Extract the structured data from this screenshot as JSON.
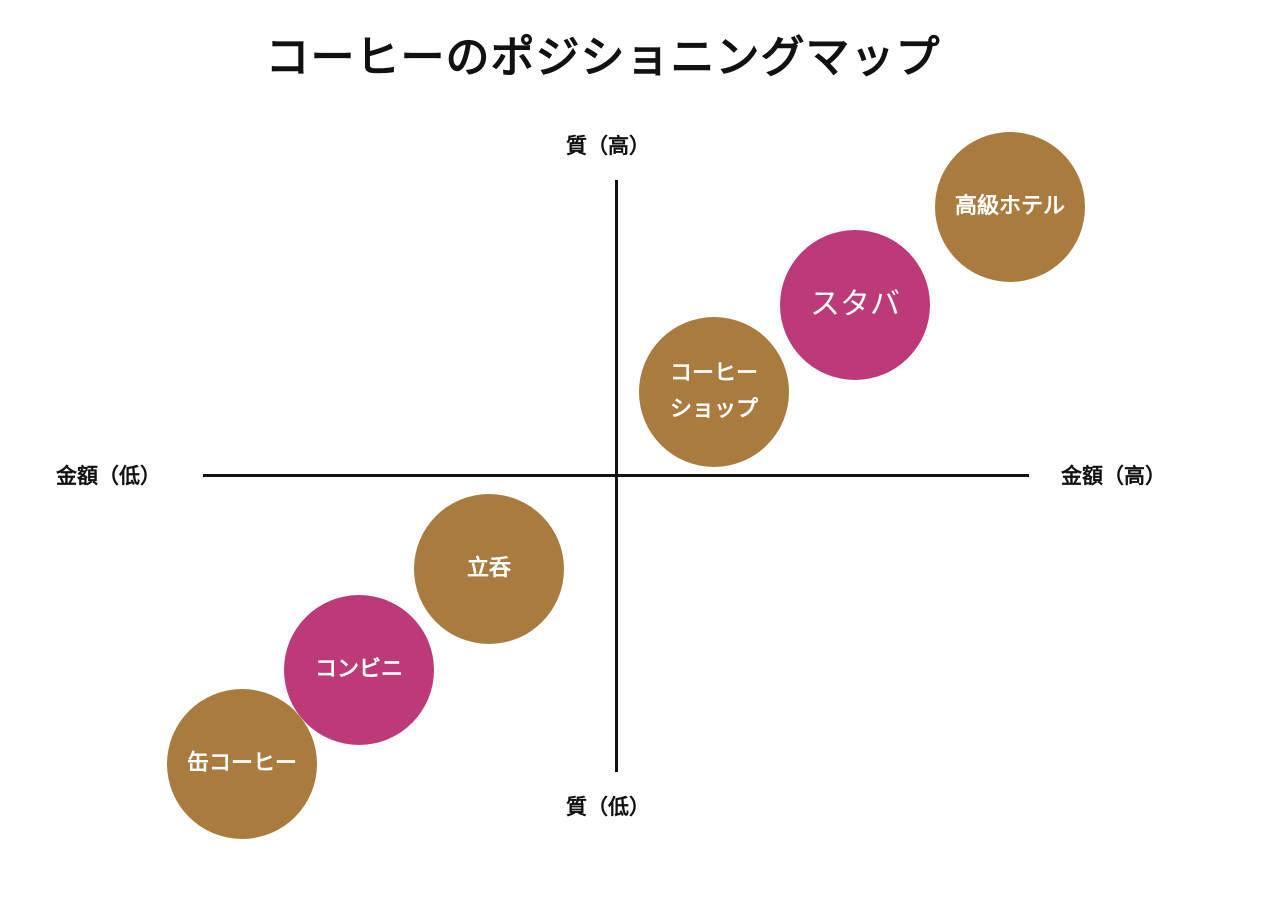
{
  "title": "コーヒーのポジショニングマップ",
  "axes": {
    "top": "質（高）",
    "bottom": "質（低）",
    "left": "金額（低）",
    "right": "金額（高）"
  },
  "colors": {
    "brown": "#A97B3E",
    "magenta": "#BC3A78",
    "axis": "#111111"
  },
  "items": [
    {
      "label": "高級ホテル",
      "color": "#A97B3E"
    },
    {
      "label": "スタバ",
      "color": "#BC3A78"
    },
    {
      "label": "コーヒー\nショップ",
      "color": "#A97B3E"
    },
    {
      "label": "立呑",
      "color": "#A97B3E"
    },
    {
      "label": "コンビニ",
      "color": "#BC3A78"
    },
    {
      "label": "缶コーヒー",
      "color": "#A97B3E"
    }
  ]
}
